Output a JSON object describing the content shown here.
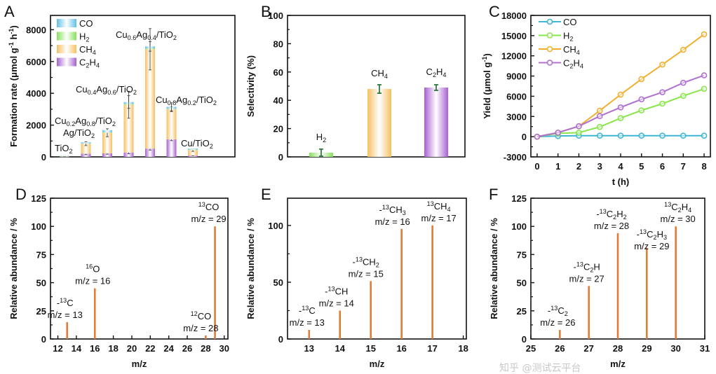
{
  "watermark": "知乎 @测试云平台",
  "chart_data": [
    {
      "panel": "A",
      "type": "bar",
      "stacked": true,
      "ylabel": "Formation rate (μmol g^{-1} h^{-1})",
      "xlabel": "",
      "ylim": [
        0,
        8900
      ],
      "yticks": [
        0,
        2000,
        4000,
        6000,
        8000
      ],
      "categories": [
        "TiO_{2}",
        "Ag/TiO_{2}",
        "Cu_{0.2}Ag_{0.8}/TiO_{2}",
        "Cu_{0.4}Ag_{0.6}/TiO_{2}",
        "Cu_{0.6}Ag_{0.4}/TiO_{2}",
        "Cu_{0.8}Ag_{0.2}/TiO_{2}",
        "Cu/TiO_{2}"
      ],
      "series": [
        {
          "name": "C_{2}H_{4}",
          "color": "#a660d0",
          "values": [
            10,
            200,
            220,
            280,
            520,
            1100,
            80
          ],
          "errors": [
            5,
            60,
            50,
            80,
            90,
            80,
            20
          ]
        },
        {
          "name": "CH_{4}",
          "color": "#f5c063",
          "values": [
            20,
            630,
            1300,
            3000,
            6250,
            1900,
            350
          ],
          "errors": [
            5,
            120,
            250,
            850,
            1300,
            150,
            80
          ]
        },
        {
          "name": "H_{2}",
          "color": "#86e05a",
          "values": [
            20,
            20,
            30,
            50,
            60,
            30,
            30
          ],
          "errors": [
            0,
            0,
            0,
            0,
            0,
            0,
            0
          ]
        },
        {
          "name": "CO",
          "color": "#5ec0e6",
          "values": [
            10,
            70,
            130,
            120,
            120,
            120,
            60
          ],
          "errors": [
            0,
            0,
            0,
            400,
            300,
            250,
            0
          ]
        }
      ],
      "legend_order": [
        "CO",
        "H_{2}",
        "CH_{4}",
        "C_{2}H_{4}"
      ],
      "legend": "top-left"
    },
    {
      "panel": "B",
      "type": "bar",
      "ylabel": "Selectivity (%)",
      "xlabel": "",
      "ylim": [
        0,
        100
      ],
      "yticks": [
        0,
        20,
        40,
        60,
        80,
        100
      ],
      "categories": [
        "H_{2}",
        "CH_{4}",
        "C_{2}H_{4}"
      ],
      "values": [
        3,
        48,
        49
      ],
      "errors": [
        2.5,
        3,
        2
      ],
      "colors": [
        "#86e05a",
        "#f5c063",
        "#a660d0"
      ]
    },
    {
      "panel": "C",
      "type": "line",
      "ylabel": "Yield (μmol g^{-1})",
      "xlabel": "t (h)",
      "ylim": [
        -3000,
        18000
      ],
      "yticks": [
        -3000,
        0,
        3000,
        6000,
        9000,
        12000,
        15000,
        18000
      ],
      "xlim": [
        -0.3,
        8.3
      ],
      "xticks": [
        0,
        1,
        2,
        3,
        4,
        5,
        6,
        7,
        8
      ],
      "x": [
        0,
        1,
        2,
        3,
        4,
        5,
        6,
        7,
        8
      ],
      "series": [
        {
          "name": "CO",
          "color": "#3eb6d4",
          "values": [
            0,
            100,
            150,
            150,
            150,
            150,
            150,
            150,
            150
          ]
        },
        {
          "name": "H_{2}",
          "color": "#88e64a",
          "values": [
            0,
            500,
            600,
            1450,
            2750,
            3900,
            4900,
            6050,
            7100
          ]
        },
        {
          "name": "CH_{4}",
          "color": "#f0b030",
          "values": [
            0,
            600,
            1550,
            3850,
            6250,
            8550,
            10700,
            12900,
            15200
          ]
        },
        {
          "name": "C_{2}H_{4}",
          "color": "#b070d0",
          "values": [
            0,
            600,
            1550,
            3050,
            4350,
            5550,
            6600,
            8000,
            9100
          ]
        }
      ],
      "legend": "top-left"
    },
    {
      "panel": "D",
      "type": "bar",
      "style": "stick-spectrum",
      "ylabel": "Relative abundance / %",
      "xlabel": "m/z",
      "ylim": [
        0,
        125
      ],
      "yticks": [
        0,
        25,
        50,
        75,
        100,
        125
      ],
      "xlim": [
        11.2,
        30.4
      ],
      "xticks": [
        12,
        14,
        16,
        18,
        20,
        22,
        24,
        26,
        28,
        30
      ],
      "color": "#e07b39",
      "peaks": [
        {
          "mz": 13,
          "value": 15,
          "label": "-^{13}C",
          "mzlabel": "m/z = 13"
        },
        {
          "mz": 16,
          "value": 45,
          "label": "^{16}O",
          "mzlabel": "m/z = 16"
        },
        {
          "mz": 28,
          "value": 3,
          "label": "^{12}CO",
          "mzlabel": "m/z = 28"
        },
        {
          "mz": 29,
          "value": 100,
          "label": "^{13}CO",
          "mzlabel": "m/z = 29"
        }
      ]
    },
    {
      "panel": "E",
      "type": "bar",
      "style": "stick-spectrum",
      "ylabel": "Relative abundance / %",
      "xlabel": "m/z",
      "ylim": [
        0,
        124
      ],
      "yticks": [
        0,
        50,
        100
      ],
      "xlim": [
        12.3,
        18.1
      ],
      "xticks": [
        13,
        14,
        15,
        16,
        17,
        18
      ],
      "color": "#e07b39",
      "peaks": [
        {
          "mz": 13,
          "value": 8,
          "label": "-^{13}C",
          "mzlabel": "m/z = 13"
        },
        {
          "mz": 14,
          "value": 25,
          "label": "-^{13}CH",
          "mzlabel": "m/z = 14"
        },
        {
          "mz": 15,
          "value": 51,
          "label": "-^{13}CH_{2}",
          "mzlabel": "m/z = 15"
        },
        {
          "mz": 16,
          "value": 97,
          "label": "-^{13}CH_{3}",
          "mzlabel": "m/z = 16"
        },
        {
          "mz": 17,
          "value": 100,
          "label": "^{13}CH_{4}",
          "mzlabel": "m/z = 17"
        }
      ]
    },
    {
      "panel": "F",
      "type": "bar",
      "style": "stick-spectrum",
      "ylabel": "Relative abundance / %",
      "xlabel": "m/z",
      "ylim": [
        0,
        125
      ],
      "yticks": [
        0,
        25,
        50,
        75,
        100,
        125
      ],
      "xlim": [
        25,
        31
      ],
      "xticks": [
        25,
        26,
        27,
        28,
        29,
        30,
        31
      ],
      "color": "#e07b39",
      "peaks": [
        {
          "mz": 26,
          "value": 8,
          "label": "-^{13}C_{2}",
          "mzlabel": "m/z = 26"
        },
        {
          "mz": 27,
          "value": 47,
          "label": "-^{13}C_{2}H",
          "mzlabel": "m/z = 27"
        },
        {
          "mz": 28,
          "value": 94,
          "label": "-^{13}C_{2}H_{2}",
          "mzlabel": "m/z = 28"
        },
        {
          "mz": 29,
          "value": 81,
          "label": "-^{13}C_{2}H_{3}",
          "mzlabel": "m/z = 29"
        },
        {
          "mz": 30,
          "value": 100,
          "label": "^{13}C_{2}H_{4}",
          "mzlabel": "m/z = 30"
        }
      ]
    }
  ]
}
